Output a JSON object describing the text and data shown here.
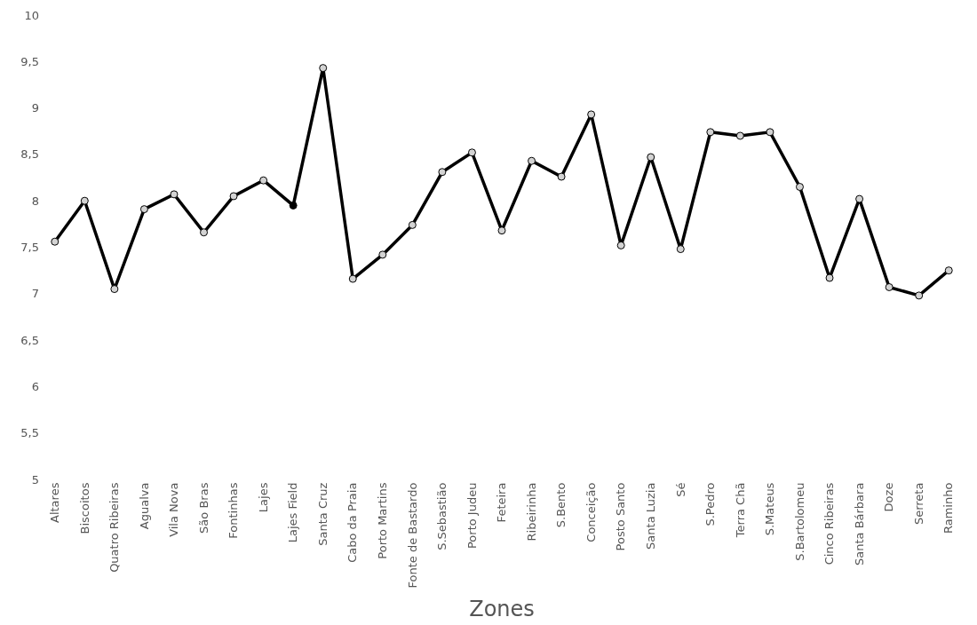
{
  "chart_data": {
    "type": "line",
    "xlabel": "Zones",
    "categories": [
      "Altares",
      "Biscoitos",
      "Quatro Ribeiras",
      "Agualva",
      "Vila Nova",
      "São Bras",
      "Fontinhas",
      "Lajes",
      "Lajes Field",
      "Santa Cruz",
      "Cabo da Praia",
      "Porto Martins",
      "Fonte de Bastardo",
      "S.Sebastião",
      "Porto Judeu",
      "Feteira",
      "Ribeirinha",
      "S.Bento",
      "Conceição",
      "Posto Santo",
      "Santa Luzia",
      "Sé",
      "S.Pedro",
      "Terra Chã",
      "S.Mateus",
      "S.Bartolomeu",
      "Cinco Ribeiras",
      "Santa Bárbara",
      "Doze",
      "Serreta",
      "Raminho"
    ],
    "series": [
      {
        "color": "#000000",
        "colors": [
          "#d3d3d3",
          "#d3d3d3",
          "#d3d3d3",
          "#d3d3d3",
          "#d3d3d3",
          "#d3d3d3",
          "#d3d3d3",
          "#d3d3d3",
          "#000000",
          "#d3d3d3",
          "#d3d3d3",
          "#d3d3d3",
          "#d3d3d3",
          "#d3d3d3",
          "#d3d3d3",
          "#d3d3d3",
          "#d3d3d3",
          "#d3d3d3",
          "#d3d3d3",
          "#d3d3d3",
          "#d3d3d3",
          "#d3d3d3",
          "#d3d3d3",
          "#d3d3d3",
          "#d3d3d3",
          "#d3d3d3",
          "#d3d3d3",
          "#d3d3d3",
          "#d3d3d3",
          "#d3d3d3",
          "#d3d3d3"
        ],
        "values": [
          7.56,
          8.0,
          7.05,
          7.91,
          8.07,
          7.66,
          8.05,
          8.22,
          7.95,
          9.43,
          7.16,
          7.42,
          7.74,
          8.31,
          8.52,
          7.68,
          8.43,
          8.26,
          8.93,
          7.52,
          8.47,
          7.48,
          8.74,
          8.7,
          8.74,
          8.15,
          7.17,
          8.02,
          7.07,
          6.98,
          7.25
        ]
      }
    ],
    "ylim": [
      5,
      10
    ],
    "yticks": [
      5,
      {
        "value": 5.5,
        "label": "5,5"
      },
      6,
      {
        "value": 6.5,
        "label": "6,5"
      },
      7,
      {
        "value": 7.5,
        "label": "7,5"
      },
      8,
      {
        "value": 8.5,
        "label": "8,5"
      },
      9,
      {
        "value": 9.5,
        "label": "9,5"
      },
      10
    ],
    "legend": false,
    "marker": "circle",
    "line_style": "solid"
  }
}
